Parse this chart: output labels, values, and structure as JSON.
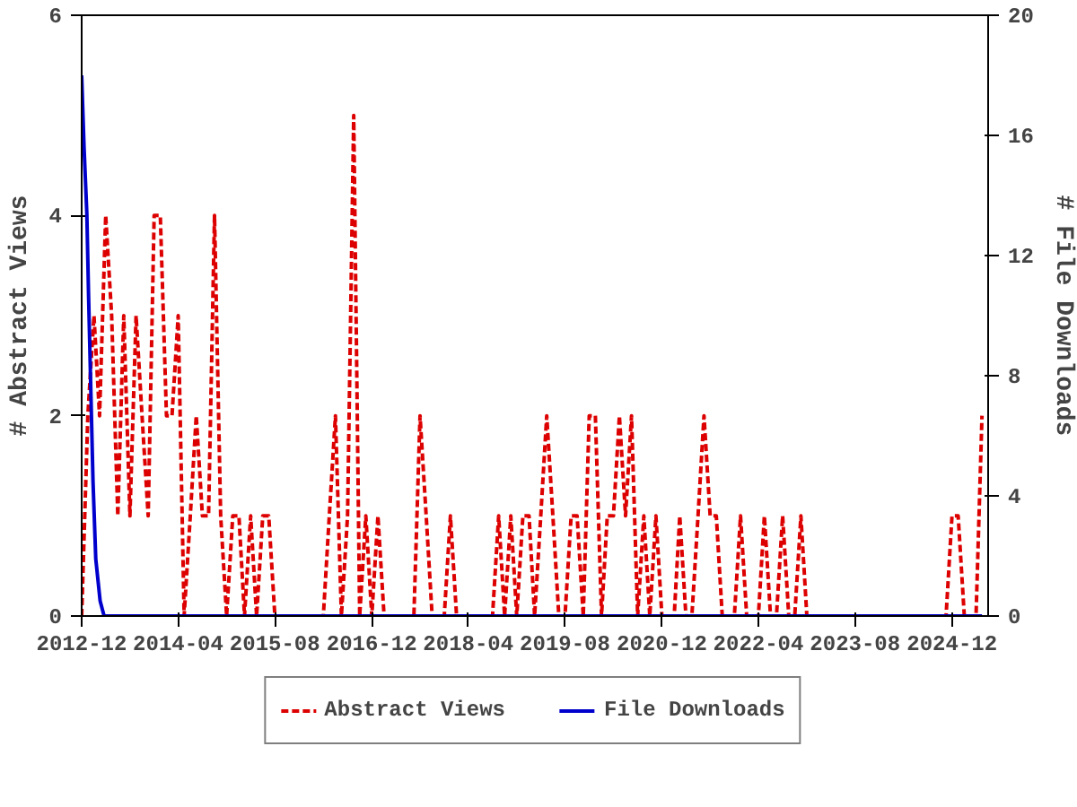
{
  "chart_data": {
    "type": "line",
    "ylabel": "# Abstract Views",
    "y2label": "# File Downloads",
    "xlim": [
      "2012-12",
      "2025-06"
    ],
    "xticks": [
      "2012-12",
      "2014-04",
      "2015-08",
      "2016-12",
      "2018-04",
      "2019-08",
      "2020-12",
      "2022-04",
      "2023-08",
      "2024-12"
    ],
    "ylim": [
      0,
      6
    ],
    "yticks": [
      0,
      2,
      4,
      6
    ],
    "y2lim": [
      0,
      20
    ],
    "y2ticks": [
      0,
      4,
      8,
      12,
      16,
      20
    ],
    "grid": false,
    "legend": "bottom",
    "marker": "none",
    "series": [
      {
        "name": "Abstract Views",
        "color": "#dd0000",
        "line_style": "dashed",
        "x": [
          "2012-12",
          "2013-01",
          "2013-02",
          "2013-03",
          "2013-04",
          "2013-05",
          "2013-06",
          "2013-07",
          "2013-08",
          "2013-09",
          "2013-10",
          "2013-11",
          "2013-12",
          "2014-01",
          "2014-02",
          "2014-03",
          "2014-04",
          "2014-05",
          "2014-06",
          "2014-07",
          "2014-08",
          "2014-09",
          "2014-10",
          "2014-11",
          "2014-12",
          "2015-01",
          "2015-02",
          "2015-03",
          "2015-04",
          "2015-05",
          "2015-06",
          "2015-07",
          "2015-08",
          "2015-09",
          "2015-10",
          "2015-11",
          "2015-12",
          "2016-01",
          "2016-02",
          "2016-03",
          "2016-04",
          "2016-05",
          "2016-06",
          "2016-07",
          "2016-08",
          "2016-09",
          "2016-10",
          "2016-11",
          "2016-12",
          "2017-01",
          "2017-02",
          "2017-03",
          "2017-04",
          "2017-05",
          "2017-06",
          "2017-07",
          "2017-08",
          "2017-09",
          "2017-10",
          "2017-11",
          "2017-12",
          "2018-01",
          "2018-02",
          "2018-03",
          "2018-04",
          "2018-05",
          "2018-06",
          "2018-07",
          "2018-08",
          "2018-09",
          "2018-10",
          "2018-11",
          "2018-12",
          "2019-01",
          "2019-02",
          "2019-03",
          "2019-04",
          "2019-05",
          "2019-06",
          "2019-07",
          "2019-08",
          "2019-09",
          "2019-10",
          "2019-11",
          "2019-12",
          "2020-01",
          "2020-02",
          "2020-03",
          "2020-04",
          "2020-05",
          "2020-06",
          "2020-07",
          "2020-08",
          "2020-09",
          "2020-10",
          "2020-11",
          "2020-12",
          "2021-01",
          "2021-02",
          "2021-03",
          "2021-04",
          "2021-05",
          "2021-06",
          "2021-07",
          "2021-08",
          "2021-09",
          "2021-10",
          "2021-11",
          "2021-12",
          "2022-01",
          "2022-02",
          "2022-03",
          "2022-04",
          "2022-05",
          "2022-06",
          "2022-07",
          "2022-08",
          "2022-09",
          "2022-10",
          "2022-11",
          "2022-12",
          "2023-01",
          "2023-02",
          "2023-03",
          "2023-04",
          "2023-05",
          "2023-06",
          "2023-07",
          "2023-08",
          "2023-09",
          "2023-10",
          "2023-11",
          "2023-12",
          "2024-01",
          "2024-02",
          "2024-03",
          "2024-04",
          "2024-05",
          "2024-06",
          "2024-07",
          "2024-08",
          "2024-09",
          "2024-10",
          "2024-11",
          "2024-12",
          "2025-01",
          "2025-02",
          "2025-03",
          "2025-04",
          "2025-05"
        ],
        "values": [
          0,
          2,
          3,
          2,
          4,
          3,
          1,
          3,
          1,
          3,
          2,
          1,
          4,
          4,
          2,
          2,
          3,
          0,
          1,
          2,
          1,
          1,
          4,
          1,
          0,
          1,
          1,
          0,
          1,
          0,
          1,
          1,
          0,
          0,
          0,
          0,
          0,
          0,
          0,
          0,
          0,
          1,
          2,
          0,
          1,
          5,
          0,
          1,
          0,
          1,
          0,
          0,
          0,
          0,
          0,
          0,
          2,
          1,
          0,
          0,
          0,
          1,
          0,
          0,
          0,
          0,
          0,
          0,
          0,
          1,
          0,
          1,
          0,
          1,
          1,
          0,
          1,
          2,
          1,
          0,
          0,
          1,
          1,
          0,
          2,
          2,
          0,
          1,
          1,
          2,
          1,
          2,
          0,
          1,
          0,
          1,
          0,
          0,
          0,
          1,
          0,
          0,
          1,
          2,
          1,
          1,
          0,
          0,
          0,
          1,
          0,
          0,
          0,
          1,
          0,
          0,
          1,
          0,
          0,
          1,
          0,
          0,
          0,
          0,
          0,
          0,
          0,
          0,
          0,
          0,
          0,
          0,
          0,
          0,
          0,
          0,
          0,
          0,
          0,
          0,
          0,
          0,
          0,
          0,
          1,
          1,
          0,
          0,
          0,
          2
        ]
      },
      {
        "name": "File Downloads",
        "color": "#0000cc",
        "line_style": "solid",
        "axis": "y2",
        "x": [
          "2012-12-01",
          "2012-12-13",
          "2012-12-27",
          "2013-01-05",
          "2013-01-27",
          "2013-02-10",
          "2013-03-04",
          "2013-03-24",
          "2025-05-01"
        ],
        "values": [
          18,
          15.6,
          13.4,
          10.6,
          4.5,
          1.9,
          0.5,
          0,
          0
        ]
      }
    ]
  }
}
